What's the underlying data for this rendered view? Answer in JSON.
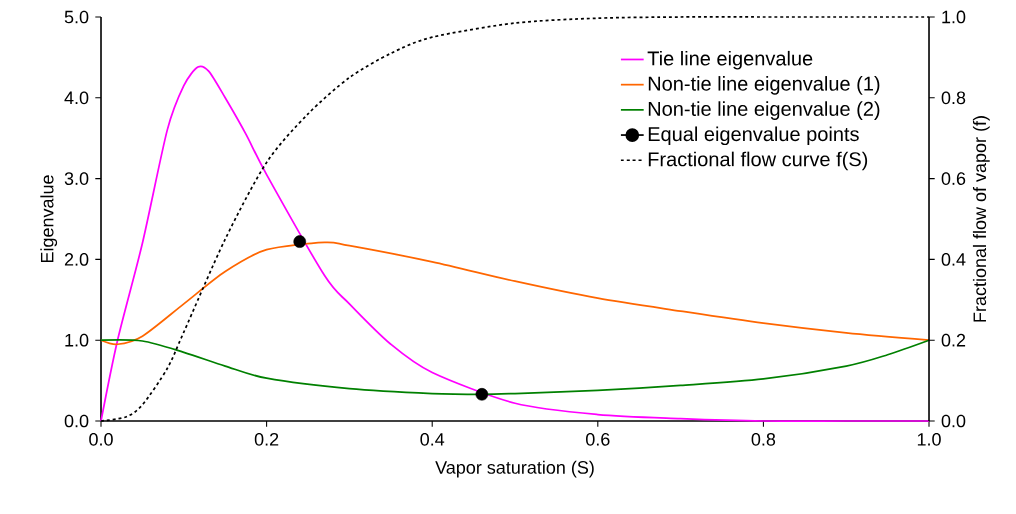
{
  "chart_data": {
    "type": "line",
    "xlabel": "Vapor saturation (S)",
    "ylabel": "Eigenvalue",
    "y2label": "Fractional flow of vapor (f)",
    "xlim": [
      0,
      1
    ],
    "ylim": [
      0,
      5
    ],
    "y2lim": [
      0,
      1
    ],
    "xticks": [
      {
        "value": 0,
        "label": "0.0"
      },
      {
        "value": 0.2,
        "label": "0.2"
      },
      {
        "value": 0.4,
        "label": "0.4"
      },
      {
        "value": 0.6,
        "label": "0.6"
      },
      {
        "value": 0.8,
        "label": "0.8"
      },
      {
        "value": 1,
        "label": "1.0"
      }
    ],
    "yticks": [
      {
        "value": 0,
        "label": "0.0"
      },
      {
        "value": 1,
        "label": "1.0"
      },
      {
        "value": 2,
        "label": "2.0"
      },
      {
        "value": 3,
        "label": "3.0"
      },
      {
        "value": 4,
        "label": "4.0"
      },
      {
        "value": 5,
        "label": "5.0"
      }
    ],
    "y2ticks": [
      {
        "value": 0,
        "label": "0.0"
      },
      {
        "value": 0.2,
        "label": "0.2"
      },
      {
        "value": 0.4,
        "label": "0.4"
      },
      {
        "value": 0.6,
        "label": "0.6"
      },
      {
        "value": 0.8,
        "label": "0.8"
      },
      {
        "value": 1,
        "label": "1.0"
      }
    ],
    "legend": "top right",
    "grid": false,
    "series": [
      {
        "name": "Tie line eigenvalue",
        "color": "#ff00ff",
        "x": [
          0,
          0.02,
          0.05,
          0.08,
          0.1,
          0.117,
          0.13,
          0.15,
          0.175,
          0.2,
          0.27,
          0.3,
          0.35,
          0.4,
          0.5,
          0.6,
          0.7,
          0.8,
          0.9,
          1.0
        ],
        "values": [
          0,
          1.0,
          2.2,
          3.6,
          4.15,
          4.38,
          4.33,
          4.0,
          3.55,
          3.05,
          1.8,
          1.45,
          0.95,
          0.6,
          0.22,
          0.08,
          0.03,
          0.0,
          0.0,
          0.0
        ]
      },
      {
        "name": "Non-tie line eigenvalue (1)",
        "color": "#ff6600",
        "x": [
          0,
          0.02,
          0.05,
          0.1,
          0.15,
          0.2,
          0.27,
          0.3,
          0.4,
          0.5,
          0.6,
          0.7,
          0.8,
          0.9,
          1.0
        ],
        "values": [
          1.0,
          0.95,
          1.05,
          1.45,
          1.85,
          2.12,
          2.21,
          2.17,
          1.97,
          1.73,
          1.52,
          1.36,
          1.21,
          1.09,
          1.0
        ]
      },
      {
        "name": "Non-tie line eigenvalue (2)",
        "color": "#008000",
        "x": [
          0,
          0.05,
          0.1,
          0.15,
          0.2,
          0.3,
          0.4,
          0.46,
          0.5,
          0.6,
          0.7,
          0.8,
          0.9,
          0.95,
          1.0
        ],
        "values": [
          1.0,
          0.99,
          0.85,
          0.68,
          0.53,
          0.4,
          0.34,
          0.33,
          0.34,
          0.38,
          0.44,
          0.52,
          0.68,
          0.82,
          1.0
        ]
      },
      {
        "name": "Equal eigenvalue points",
        "type": "scatter",
        "marker": "circle",
        "color": "#000000",
        "x": [
          0.24,
          0.46
        ],
        "values": [
          2.22,
          0.33
        ]
      },
      {
        "name": "Fractional flow curve f(S)",
        "axis": "y2",
        "line_style": "dashed",
        "color": "#000000",
        "x": [
          0,
          0.03,
          0.05,
          0.08,
          0.1,
          0.15,
          0.2,
          0.25,
          0.3,
          0.35,
          0.4,
          0.5,
          0.6,
          0.7,
          0.8,
          0.9,
          1.0
        ],
        "values": [
          0,
          0.01,
          0.04,
          0.13,
          0.22,
          0.45,
          0.64,
          0.76,
          0.85,
          0.91,
          0.95,
          0.985,
          0.997,
          1.0,
          1.0,
          1.0,
          1.0
        ]
      }
    ]
  }
}
